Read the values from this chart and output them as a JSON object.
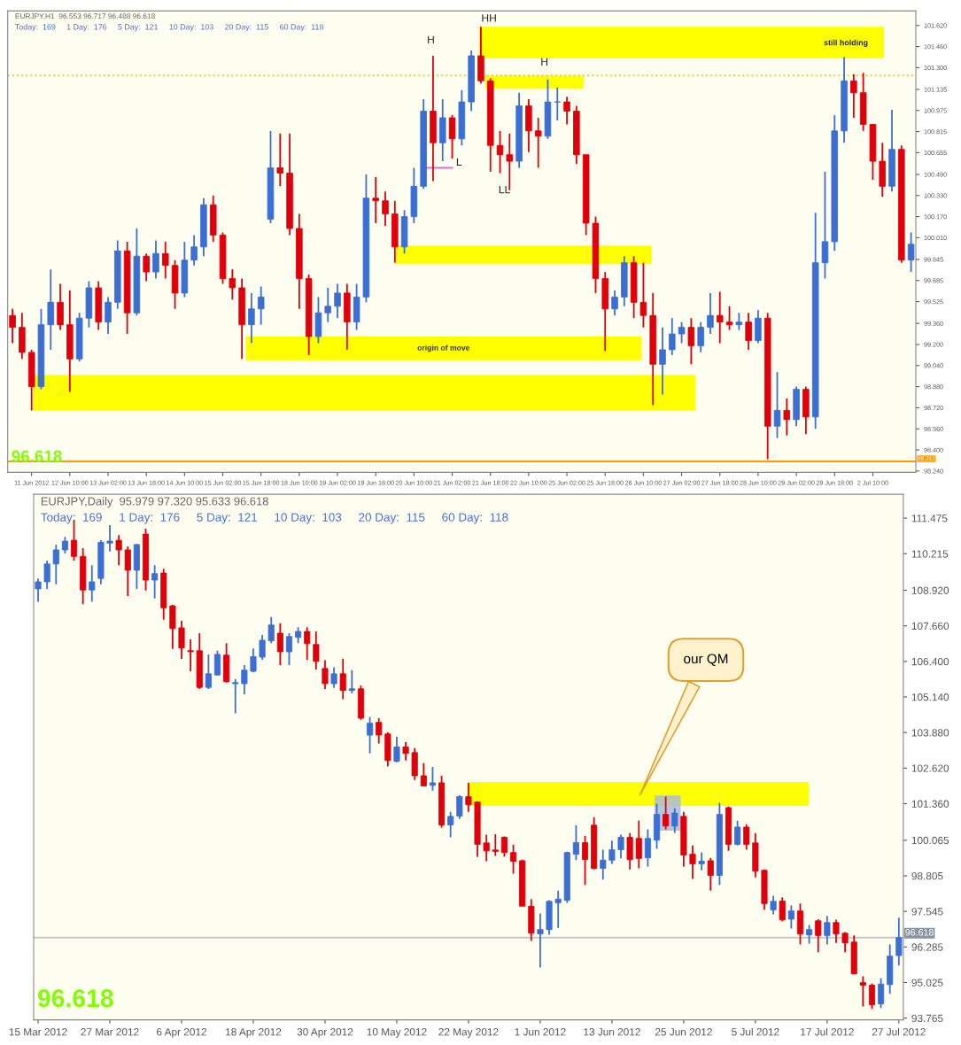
{
  "chart_data": [
    {
      "type": "candlestick",
      "title": "EURJPY,H1  96.553 96.717 96.488 96.618",
      "subtitle": "Today:  169     1 Day:  176     5 Day:  121     10 Day:  103     20 Day:  115     60 Day:  118",
      "grid": false,
      "categories": [
        null,
        null,
        "11 Jun 2012",
        null,
        null,
        null,
        "12 Jun 10:00",
        null,
        null,
        null,
        "13 Jun 02:00",
        null,
        null,
        null,
        "13 Jun 18:00",
        null,
        null,
        null,
        "14 Jun 10:00",
        null,
        null,
        null,
        "15 Jun 02:00",
        null,
        null,
        null,
        "15 Jun 18:00",
        null,
        null,
        null,
        "18 Jun 10:00",
        null,
        null,
        null,
        "19 Jun 02:00",
        null,
        null,
        null,
        "19 Jun 18:00",
        null,
        null,
        null,
        "20 Jun 10:00",
        null,
        null,
        null,
        "21 Jun 02:00",
        null,
        null,
        null,
        "21 Jun 18:00",
        null,
        null,
        null,
        "22 Jun 10:00",
        null,
        null,
        null,
        "25 Jun 02:00",
        null,
        null,
        null,
        "25 Jun 18:00",
        null,
        null,
        null,
        "26 Jun 10:00",
        null,
        null,
        null,
        "27 Jun 02:00",
        null,
        null,
        null,
        "27 Jun 18:00",
        null,
        null,
        null,
        "28 Jun 10:00",
        null,
        null,
        null,
        "29 Jun 02:00",
        null,
        null,
        null,
        "29 Jun 18:00",
        null,
        null,
        null,
        "2 Jul 10:00",
        null,
        null,
        null,
        null
      ],
      "ohlc": [
        [
          99.42,
          99.47,
          99.21,
          99.33
        ],
        [
          99.33,
          99.44,
          99.09,
          99.14
        ],
        [
          99.14,
          99.16,
          98.7,
          98.88
        ],
        [
          98.88,
          99.47,
          98.86,
          99.35
        ],
        [
          99.35,
          99.77,
          99.16,
          99.52
        ],
        [
          99.52,
          99.66,
          99.31,
          99.35
        ],
        [
          99.35,
          99.61,
          98.84,
          99.09
        ],
        [
          99.09,
          99.44,
          99.07,
          99.4
        ],
        [
          99.4,
          99.68,
          99.33,
          99.63
        ],
        [
          99.63,
          99.68,
          99.31,
          99.37
        ],
        [
          99.37,
          99.56,
          99.28,
          99.52
        ],
        [
          99.52,
          99.99,
          99.47,
          99.91
        ],
        [
          99.91,
          99.98,
          99.28,
          99.44
        ],
        [
          99.44,
          100.08,
          99.42,
          99.87
        ],
        [
          99.87,
          99.89,
          99.68,
          99.75
        ],
        [
          99.75,
          99.99,
          99.7,
          99.89
        ],
        [
          99.89,
          99.98,
          99.7,
          99.8
        ],
        [
          99.8,
          99.84,
          99.47,
          99.59
        ],
        [
          99.59,
          99.98,
          99.56,
          99.84
        ],
        [
          99.84,
          100.03,
          99.8,
          99.94
        ],
        [
          99.94,
          100.31,
          99.87,
          100.26
        ],
        [
          100.26,
          100.33,
          99.98,
          100.03
        ],
        [
          100.03,
          100.05,
          99.66,
          99.7
        ],
        [
          99.7,
          99.77,
          99.54,
          99.63
        ],
        [
          99.63,
          99.7,
          99.09,
          99.35
        ],
        [
          99.35,
          99.59,
          99.21,
          99.47
        ],
        [
          99.47,
          99.64,
          99.35,
          99.56
        ],
        [
          100.15,
          100.82,
          100.12,
          100.54
        ],
        [
          100.54,
          100.8,
          100.4,
          100.5
        ],
        [
          100.5,
          100.8,
          100.03,
          100.08
        ],
        [
          100.08,
          100.19,
          99.47,
          99.7
        ],
        [
          99.7,
          99.73,
          99.12,
          99.26
        ],
        [
          99.26,
          99.56,
          99.21,
          99.44
        ],
        [
          99.44,
          99.63,
          99.37,
          99.49
        ],
        [
          99.49,
          99.66,
          99.4,
          99.59
        ],
        [
          99.59,
          99.66,
          99.16,
          99.37
        ],
        [
          99.37,
          99.66,
          99.31,
          99.56
        ],
        [
          99.56,
          100.49,
          99.52,
          100.31
        ],
        [
          100.31,
          100.47,
          100.12,
          100.29
        ],
        [
          100.29,
          100.36,
          100.1,
          100.19
        ],
        [
          100.19,
          100.29,
          99.82,
          99.94
        ],
        [
          99.94,
          100.22,
          99.89,
          100.17
        ],
        [
          100.17,
          100.54,
          100.12,
          100.4
        ],
        [
          100.4,
          101.06,
          100.38,
          100.97
        ],
        [
          100.97,
          101.39,
          100.44,
          100.73
        ],
        [
          100.73,
          101.06,
          100.59,
          100.92
        ],
        [
          100.92,
          100.94,
          100.61,
          100.76
        ],
        [
          100.76,
          101.13,
          100.71,
          101.04
        ],
        [
          101.04,
          101.43,
          100.97,
          101.39
        ],
        [
          101.39,
          101.61,
          101.18,
          101.2
        ],
        [
          101.2,
          101.22,
          100.51,
          100.71
        ],
        [
          100.71,
          100.82,
          100.5,
          100.64
        ],
        [
          100.64,
          100.8,
          100.37,
          100.59
        ],
        [
          100.59,
          101.11,
          100.54,
          101.01
        ],
        [
          101.01,
          101.06,
          100.66,
          100.82
        ],
        [
          100.82,
          100.92,
          100.54,
          100.78
        ],
        [
          100.78,
          101.21,
          100.76,
          101.04
        ],
        [
          101.04,
          101.15,
          100.9,
          101.04
        ],
        [
          101.04,
          101.08,
          100.87,
          100.97
        ],
        [
          100.97,
          101.01,
          100.57,
          100.64
        ],
        [
          100.64,
          100.64,
          100.03,
          100.12
        ],
        [
          100.12,
          100.17,
          99.59,
          99.7
        ],
        [
          99.7,
          99.75,
          99.15,
          99.47
        ],
        [
          99.47,
          99.61,
          99.42,
          99.56
        ],
        [
          99.56,
          99.87,
          99.49,
          99.82
        ],
        [
          99.82,
          99.87,
          99.4,
          99.52
        ],
        [
          99.52,
          99.82,
          99.33,
          99.42
        ],
        [
          99.42,
          99.59,
          98.74,
          99.05
        ],
        [
          99.05,
          99.33,
          98.82,
          99.16
        ],
        [
          99.16,
          99.4,
          99.12,
          99.28
        ],
        [
          99.28,
          99.37,
          99.21,
          99.33
        ],
        [
          99.33,
          99.4,
          99.05,
          99.19
        ],
        [
          99.19,
          99.37,
          99.14,
          99.33
        ],
        [
          99.33,
          99.59,
          99.28,
          99.42
        ],
        [
          99.42,
          99.6,
          99.21,
          99.37
        ],
        [
          99.37,
          99.49,
          99.31,
          99.35
        ],
        [
          99.35,
          99.44,
          99.31,
          99.37
        ],
        [
          99.37,
          99.44,
          99.16,
          99.23
        ],
        [
          99.23,
          99.46,
          99.21,
          99.4
        ],
        [
          99.4,
          99.44,
          98.33,
          98.58
        ],
        [
          98.58,
          98.99,
          98.49,
          98.7
        ],
        [
          98.7,
          98.79,
          98.51,
          98.63
        ],
        [
          98.63,
          98.88,
          98.58,
          98.86
        ],
        [
          98.86,
          98.88,
          98.52,
          98.65
        ],
        [
          98.65,
          100.2,
          98.56,
          99.82
        ],
        [
          99.82,
          100.51,
          99.7,
          99.98
        ],
        [
          99.98,
          100.94,
          99.91,
          100.82
        ],
        [
          100.82,
          101.38,
          100.73,
          101.2
        ],
        [
          101.2,
          101.25,
          100.92,
          101.11
        ],
        [
          101.11,
          101.26,
          100.82,
          100.87
        ],
        [
          100.87,
          100.87,
          100.45,
          100.59
        ],
        [
          100.59,
          100.73,
          100.32,
          100.4
        ],
        [
          100.4,
          100.98,
          100.36,
          100.68
        ],
        [
          100.68,
          100.71,
          99.82,
          99.84
        ],
        [
          99.84,
          100.05,
          99.75,
          99.96
        ]
      ],
      "colors": [
        "#e0000c",
        "#e0000c",
        "#e0000c",
        "#3b6fd4",
        "#3b6fd4",
        "#e0000c",
        "#e0000c",
        "#3b6fd4",
        "#3b6fd4",
        "#e0000c",
        "#3b6fd4",
        "#3b6fd4",
        "#e0000c",
        "#3b6fd4",
        "#e0000c",
        "#3b6fd4",
        "#e0000c",
        "#e0000c",
        "#3b6fd4",
        "#3b6fd4",
        "#3b6fd4",
        "#e0000c",
        "#e0000c",
        "#e0000c",
        "#e0000c",
        "#3b6fd4",
        "#3b6fd4",
        "#3b6fd4",
        "#e0000c",
        "#e0000c",
        "#e0000c",
        "#e0000c",
        "#3b6fd4",
        "#3b6fd4",
        "#3b6fd4",
        "#e0000c",
        "#3b6fd4",
        "#3b6fd4",
        "#e0000c",
        "#e0000c",
        "#e0000c",
        "#3b6fd4",
        "#3b6fd4",
        "#3b6fd4",
        "#e0000c",
        "#3b6fd4",
        "#e0000c",
        "#3b6fd4",
        "#3b6fd4",
        "#e0000c",
        "#e0000c",
        "#e0000c",
        "#e0000c",
        "#3b6fd4",
        "#e0000c",
        "#e0000c",
        "#3b6fd4",
        "#3b6fd4",
        "#e0000c",
        "#e0000c",
        "#e0000c",
        "#e0000c",
        "#e0000c",
        "#3b6fd4",
        "#3b6fd4",
        "#e0000c",
        "#e0000c",
        "#e0000c",
        "#3b6fd4",
        "#3b6fd4",
        "#3b6fd4",
        "#e0000c",
        "#3b6fd4",
        "#3b6fd4",
        "#e0000c",
        "#e0000c",
        "#3b6fd4",
        "#e0000c",
        "#3b6fd4",
        "#e0000c",
        "#3b6fd4",
        "#e0000c",
        "#3b6fd4",
        "#e0000c",
        "#3b6fd4",
        "#3b6fd4",
        "#3b6fd4",
        "#3b6fd4",
        "#e0000c",
        "#e0000c",
        "#e0000c",
        "#e0000c",
        "#3b6fd4",
        "#e0000c",
        "#3b6fd4"
      ],
      "series": [
        {
          "type": "line",
          "color": "#e070d0",
          "values": [
            null,
            null,
            null,
            null,
            null,
            null,
            null,
            null,
            null,
            null,
            null,
            null,
            null,
            null,
            null,
            null,
            null,
            null,
            null,
            null,
            null,
            null,
            null,
            null,
            null,
            null,
            null,
            null,
            null,
            null,
            null,
            null,
            null,
            null,
            null,
            null,
            null,
            null,
            null,
            null,
            null,
            null,
            null,
            100.54,
            100.54,
            100.54,
            100.54,
            null,
            null,
            null,
            null,
            null,
            null,
            null,
            null,
            null,
            null,
            null,
            null,
            null,
            null,
            null,
            null,
            null,
            null,
            null,
            null,
            null,
            null,
            null,
            null,
            null,
            null,
            null,
            null,
            null,
            null,
            null,
            null,
            null,
            null,
            null,
            null,
            null,
            null,
            null,
            null,
            null,
            null,
            null,
            null,
            null,
            null,
            null,
            null
          ]
        }
      ],
      "ylim": [
        98.23,
        101.73
      ],
      "yticks": [
        {
          "value": 101.62,
          "label": "101.620"
        },
        {
          "value": 101.46,
          "label": "101.460"
        },
        {
          "value": 101.3,
          "label": "101.300"
        },
        {
          "value": 101.135,
          "label": "101.135"
        },
        {
          "value": 100.975,
          "label": "100.975"
        },
        {
          "value": 100.815,
          "label": "100.815"
        },
        {
          "value": 100.655,
          "label": "100.655"
        },
        {
          "value": 100.49,
          "label": "100.490"
        },
        {
          "value": 100.33,
          "label": "100.330"
        },
        {
          "value": 100.17,
          "label": "100.170"
        },
        {
          "value": 100.01,
          "label": "100.010"
        },
        {
          "value": 99.845,
          "label": "99.845"
        },
        {
          "value": 99.685,
          "label": "99.685"
        },
        {
          "value": 99.525,
          "label": "99.525"
        },
        {
          "value": 99.36,
          "label": "99.360"
        },
        {
          "value": 99.2,
          "label": "99.200"
        },
        {
          "value": 99.04,
          "label": "99.040"
        },
        {
          "value": 98.88,
          "label": "98.880"
        },
        {
          "value": 98.72,
          "label": "98.720"
        },
        {
          "value": 98.56,
          "label": "98.560"
        },
        {
          "value": 98.4,
          "label": "98.400"
        },
        {
          "value": 98.24,
          "label": "98.240"
        }
      ],
      "bands": [
        {
          "axis": "y",
          "from": 101.37,
          "to": 101.61,
          "color": "#ffff00"
        },
        {
          "axis": "y",
          "from": 101.14,
          "to": 101.24,
          "color": "#ffff00"
        },
        {
          "axis": "y",
          "from": 99.81,
          "to": 99.95,
          "color": "#ffff00"
        },
        {
          "axis": "y",
          "from": 99.08,
          "to": 99.26,
          "color": "#ffff00",
          "label": "origin of move"
        },
        {
          "axis": "y",
          "from": 98.7,
          "to": 98.97,
          "color": "#ffff00"
        }
      ],
      "ref_lines": [
        {
          "axis": "y",
          "value": 98.313,
          "label": "98.313",
          "color": "#ff9900",
          "line_style": "solid"
        },
        {
          "axis": "y",
          "value": 101.24,
          "color": "#f5c242",
          "line_style": "dotted"
        }
      ],
      "annotations": [
        "96.618",
        "H",
        "HH",
        "L",
        "LL",
        "H",
        "still holding"
      ]
    },
    {
      "type": "candlestick",
      "title": "EURJPY,Daily  95.979 97.320 95.633 96.618",
      "subtitle": "Today:  169     1 Day:  176     5 Day:  121     10 Day:  103     20 Day:  115     60 Day:  118",
      "grid": false,
      "categories": [
        "15 Mar 2012",
        null,
        null,
        null,
        null,
        null,
        null,
        null,
        "27 Mar 2012",
        null,
        null,
        null,
        null,
        null,
        null,
        null,
        "6 Apr 2012",
        null,
        null,
        null,
        null,
        null,
        null,
        null,
        "18 Apr 2012",
        null,
        null,
        null,
        null,
        null,
        null,
        null,
        "30 Apr 2012",
        null,
        null,
        null,
        null,
        null,
        null,
        null,
        "10 May 2012",
        null,
        null,
        null,
        null,
        null,
        null,
        null,
        "22 May 2012",
        null,
        null,
        null,
        null,
        null,
        null,
        null,
        "1 Jun 2012",
        null,
        null,
        null,
        null,
        null,
        null,
        null,
        "13 Jun 2012",
        null,
        null,
        null,
        null,
        null,
        null,
        null,
        "25 Jun 2012",
        null,
        null,
        null,
        null,
        null,
        null,
        null,
        "5 Jul 2012",
        null,
        null,
        null,
        null,
        null,
        null,
        null,
        "17 Jul 2012",
        null,
        null,
        null,
        null,
        null,
        null,
        null,
        "27 Jul 2012"
      ],
      "ohlc": [
        [
          108.97,
          109.34,
          108.51,
          109.22
        ],
        [
          109.22,
          109.97,
          108.97,
          109.85
        ],
        [
          109.85,
          110.54,
          109.13,
          110.35
        ],
        [
          110.35,
          110.81,
          110.22,
          110.66
        ],
        [
          110.69,
          111.41,
          109.97,
          110.12
        ],
        [
          110.12,
          110.41,
          108.43,
          108.93
        ],
        [
          108.93,
          109.81,
          108.51,
          109.22
        ],
        [
          109.34,
          110.69,
          109.13,
          110.62
        ],
        [
          110.59,
          111.23,
          110.29,
          110.66
        ],
        [
          110.69,
          110.87,
          109.81,
          110.35
        ],
        [
          110.35,
          110.47,
          108.72,
          109.63
        ],
        [
          109.63,
          110.56,
          108.97,
          110.54
        ],
        [
          110.91,
          111.1,
          108.91,
          109.28
        ],
        [
          109.28,
          109.81,
          108.63,
          109.51
        ],
        [
          109.53,
          109.68,
          107.88,
          108.3
        ],
        [
          108.37,
          108.4,
          106.84,
          107.56
        ],
        [
          107.59,
          107.84,
          106.49,
          106.87
        ],
        [
          106.78,
          107.18,
          106.05,
          106.74
        ],
        [
          106.78,
          107.4,
          105.42,
          105.48
        ],
        [
          105.48,
          106.65,
          105.42,
          105.96
        ],
        [
          105.92,
          106.78,
          105.9,
          106.65
        ],
        [
          106.62,
          107.05,
          105.65,
          105.68
        ],
        [
          105.61,
          105.77,
          104.56,
          105.65
        ],
        [
          105.61,
          106.27,
          105.23,
          106.09
        ],
        [
          106.05,
          106.86,
          106.02,
          106.57
        ],
        [
          106.55,
          107.34,
          106.46,
          107.15
        ],
        [
          107.13,
          107.97,
          107.05,
          107.69
        ],
        [
          107.4,
          107.75,
          106.27,
          106.74
        ],
        [
          106.74,
          107.4,
          106.27,
          107.28
        ],
        [
          107.25,
          107.61,
          107.05,
          107.46
        ],
        [
          107.46,
          107.61,
          106.46,
          107.03
        ],
        [
          107.0,
          107.46,
          106.11,
          106.4
        ],
        [
          106.15,
          106.44,
          105.42,
          105.61
        ],
        [
          105.61,
          106.19,
          105.46,
          105.96
        ],
        [
          105.96,
          106.5,
          105.06,
          105.37
        ],
        [
          105.37,
          106.09,
          105.27,
          105.43
        ],
        [
          105.43,
          105.55,
          104.33,
          104.39
        ],
        [
          103.79,
          104.43,
          103.14,
          104.21
        ],
        [
          104.24,
          104.39,
          103.49,
          103.79
        ],
        [
          103.83,
          103.89,
          102.68,
          102.89
        ],
        [
          102.86,
          103.74,
          102.83,
          103.37
        ],
        [
          103.37,
          103.54,
          102.89,
          103.14
        ],
        [
          103.17,
          103.33,
          102.2,
          102.35
        ],
        [
          102.35,
          102.8,
          101.99,
          101.99
        ],
        [
          102.01,
          102.66,
          101.82,
          102.1
        ],
        [
          102.1,
          102.35,
          100.51,
          100.6
        ],
        [
          100.61,
          101.07,
          100.17,
          100.91
        ],
        [
          100.92,
          101.66,
          100.82,
          101.61
        ],
        [
          101.61,
          102.1,
          101.07,
          101.32
        ],
        [
          101.42,
          101.45,
          99.48,
          99.92
        ],
        [
          99.97,
          100.26,
          99.32,
          99.69
        ],
        [
          99.72,
          100.28,
          99.51,
          99.67
        ],
        [
          100.17,
          100.2,
          99.48,
          99.63
        ],
        [
          99.63,
          99.91,
          98.88,
          99.32
        ],
        [
          99.34,
          99.38,
          97.73,
          97.73
        ],
        [
          97.73,
          97.98,
          96.5,
          96.77
        ],
        [
          96.75,
          97.47,
          95.56,
          96.9
        ],
        [
          96.9,
          97.94,
          96.72,
          97.9
        ],
        [
          97.85,
          98.28,
          96.96,
          97.98
        ],
        [
          97.94,
          99.66,
          97.85,
          99.63
        ],
        [
          99.57,
          100.6,
          99.36,
          99.98
        ],
        [
          99.98,
          100.22,
          98.48,
          99.38
        ],
        [
          100.6,
          100.88,
          99.03,
          99.07
        ],
        [
          99.07,
          99.73,
          98.67,
          99.36
        ],
        [
          99.36,
          100.05,
          99.23,
          99.73
        ],
        [
          99.73,
          100.26,
          99.42,
          100.17
        ],
        [
          100.17,
          100.32,
          99.03,
          99.38
        ],
        [
          100.13,
          100.76,
          99.07,
          99.42
        ],
        [
          99.44,
          100.45,
          99.13,
          100.13
        ],
        [
          100.07,
          101.36,
          99.76,
          100.98
        ],
        [
          100.98,
          101.61,
          100.45,
          100.57
        ],
        [
          100.57,
          101.2,
          100.32,
          101.03
        ],
        [
          100.91,
          101.07,
          99.13,
          99.54
        ],
        [
          99.57,
          99.88,
          98.69,
          99.23
        ],
        [
          99.23,
          99.63,
          99.0,
          99.32
        ],
        [
          99.34,
          99.44,
          98.28,
          98.82
        ],
        [
          98.82,
          101.39,
          98.48,
          100.98
        ],
        [
          101.22,
          101.26,
          99.69,
          99.92
        ],
        [
          99.92,
          100.76,
          99.88,
          100.53
        ],
        [
          100.53,
          100.63,
          99.73,
          99.92
        ],
        [
          99.97,
          100.32,
          98.75,
          98.97
        ],
        [
          99.0,
          99.03,
          97.6,
          97.82
        ],
        [
          97.6,
          98.1,
          97.44,
          97.9
        ],
        [
          97.91,
          98.04,
          97.19,
          97.25
        ],
        [
          97.27,
          97.75,
          96.94,
          97.56
        ],
        [
          97.56,
          97.82,
          96.37,
          96.75
        ],
        [
          96.71,
          97.06,
          96.4,
          96.9
        ],
        [
          97.21,
          97.27,
          96.1,
          96.69
        ],
        [
          96.69,
          97.38,
          96.37,
          97.15
        ],
        [
          97.15,
          97.25,
          96.43,
          96.75
        ],
        [
          96.77,
          96.81,
          96.1,
          96.43
        ],
        [
          96.46,
          96.69,
          95.31,
          95.33
        ],
        [
          95.02,
          95.24,
          94.18,
          94.93
        ],
        [
          94.93,
          94.99,
          94.09,
          94.24
        ],
        [
          94.27,
          95.18,
          94.12,
          94.97
        ],
        [
          94.95,
          96.37,
          94.62,
          95.96
        ],
        [
          95.98,
          97.32,
          95.63,
          96.62
        ]
      ],
      "colors": [
        "#3b6fd4",
        "#3b6fd4",
        "#3b6fd4",
        "#3b6fd4",
        "#e0000c",
        "#e0000c",
        "#3b6fd4",
        "#3b6fd4",
        "#3b6fd4",
        "#e0000c",
        "#e0000c",
        "#3b6fd4",
        "#e0000c",
        "#3b6fd4",
        "#e0000c",
        "#e0000c",
        "#e0000c",
        "#e0000c",
        "#e0000c",
        "#3b6fd4",
        "#3b6fd4",
        "#e0000c",
        "#3b6fd4",
        "#3b6fd4",
        "#3b6fd4",
        "#3b6fd4",
        "#3b6fd4",
        "#e0000c",
        "#3b6fd4",
        "#3b6fd4",
        "#e0000c",
        "#e0000c",
        "#e0000c",
        "#3b6fd4",
        "#e0000c",
        "#3b6fd4",
        "#e0000c",
        "#3b6fd4",
        "#e0000c",
        "#e0000c",
        "#3b6fd4",
        "#e0000c",
        "#e0000c",
        "#e0000c",
        "#3b6fd4",
        "#e0000c",
        "#3b6fd4",
        "#3b6fd4",
        "#e0000c",
        "#e0000c",
        "#e0000c",
        "#e0000c",
        "#e0000c",
        "#e0000c",
        "#e0000c",
        "#e0000c",
        "#3b6fd4",
        "#3b6fd4",
        "#3b6fd4",
        "#3b6fd4",
        "#3b6fd4",
        "#e0000c",
        "#e0000c",
        "#3b6fd4",
        "#3b6fd4",
        "#3b6fd4",
        "#e0000c",
        "#e0000c",
        "#3b6fd4",
        "#3b6fd4",
        "#e0000c",
        "#3b6fd4",
        "#e0000c",
        "#e0000c",
        "#3b6fd4",
        "#e0000c",
        "#3b6fd4",
        "#e0000c",
        "#3b6fd4",
        "#e0000c",
        "#e0000c",
        "#e0000c",
        "#3b6fd4",
        "#e0000c",
        "#3b6fd4",
        "#e0000c",
        "#3b6fd4",
        "#e0000c",
        "#3b6fd4",
        "#e0000c",
        "#e0000c",
        "#e0000c",
        "#e0000c",
        "#e0000c",
        "#3b6fd4",
        "#3b6fd4",
        "#3b6fd4"
      ],
      "ylim": [
        93.7,
        112.32
      ],
      "yticks": [
        {
          "value": 111.475,
          "label": "111.475"
        },
        {
          "value": 110.215,
          "label": "110.215"
        },
        {
          "value": 108.92,
          "label": "108.920"
        },
        {
          "value": 107.66,
          "label": "107.660"
        },
        {
          "value": 106.4,
          "label": "106.400"
        },
        {
          "value": 105.14,
          "label": "105.140"
        },
        {
          "value": 103.88,
          "label": "103.880"
        },
        {
          "value": 102.62,
          "label": "102.620"
        },
        {
          "value": 101.36,
          "label": "101.360"
        },
        {
          "value": 100.065,
          "label": "100.065"
        },
        {
          "value": 98.805,
          "label": "98.805"
        },
        {
          "value": 97.545,
          "label": "97.545"
        },
        {
          "value": 96.285,
          "label": "96.285"
        },
        {
          "value": 95.025,
          "label": "95.025"
        },
        {
          "value": 93.765,
          "label": "93.765"
        }
      ],
      "bands": [
        {
          "axis": "y",
          "from": 101.28,
          "to": 102.13,
          "color": "#ffff00"
        }
      ],
      "ref_lines": [
        {
          "axis": "y",
          "value": 96.618,
          "label": "96.618",
          "color": "#c8c8c8",
          "line_style": "solid"
        }
      ],
      "annotations": [
        "96.618",
        "our QM"
      ]
    }
  ]
}
